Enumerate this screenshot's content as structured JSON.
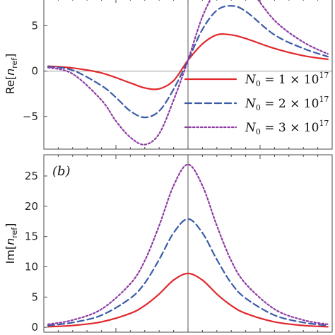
{
  "chart_data": [
    {
      "type": "line",
      "panel": "top",
      "tag": "",
      "ylabel": "Re[n_ref]",
      "ylabel_main": "Re[",
      "ylabel_n": "n",
      "ylabel_sub": "ref",
      "ylabel_close": "]",
      "xlim": [
        -10,
        10
      ],
      "ylim": [
        -8.6,
        8.0
      ],
      "yticks": [
        -5,
        0,
        5
      ],
      "ytick_labels": [
        "−5",
        "0",
        "5"
      ],
      "center_x": 0,
      "series": [
        {
          "name": "N0 = 1×10^17",
          "color": "#e0282c",
          "style": "solid",
          "x": [
            -9.7,
            -8,
            -6,
            -4,
            -3,
            -2,
            -1,
            0,
            1,
            2,
            3,
            4,
            6,
            8,
            9.7
          ],
          "y": [
            0.55,
            0.35,
            -0.2,
            -1.3,
            -1.85,
            -1.95,
            -1.05,
            1.2,
            3.0,
            4.0,
            4.0,
            3.6,
            2.5,
            1.7,
            1.3
          ]
        },
        {
          "name": "N0 = 2×10^17",
          "color": "#3a5ba8",
          "style": "dashed",
          "x": [
            -9.7,
            -8,
            -6,
            -5,
            -4,
            -3,
            -2,
            -1,
            0,
            1,
            2,
            3,
            4,
            6,
            8,
            9.7
          ],
          "y": [
            0.5,
            0.1,
            -1.6,
            -2.9,
            -4.4,
            -5.1,
            -4.4,
            -2.0,
            1.2,
            4.6,
            6.7,
            7.2,
            6.6,
            4.0,
            2.5,
            1.6
          ]
        },
        {
          "name": "N0 = 3×10^17",
          "color": "#8e3aa4",
          "style": "dotted",
          "x": [
            -9.7,
            -8,
            -6,
            -5,
            -4,
            -3,
            -2,
            -1,
            0,
            1,
            2,
            3,
            4,
            6,
            8,
            9.7
          ],
          "y": [
            0.4,
            -0.3,
            -3.2,
            -5.5,
            -7.3,
            -8.1,
            -6.9,
            -3.2,
            1.2,
            6.0,
            9.0,
            10.2,
            9.6,
            5.6,
            3.2,
            1.9
          ]
        }
      ],
      "legend": {
        "placement": "center-right",
        "entries": [
          {
            "lhs": "N",
            "sub": "0",
            "rhs": " = 1 × 10",
            "sup": "17"
          },
          {
            "lhs": "N",
            "sub": "0",
            "rhs": " = 2 × 10",
            "sup": "17"
          },
          {
            "lhs": "N",
            "sub": "0",
            "rhs": " = 3 × 10",
            "sup": "17"
          }
        ]
      }
    },
    {
      "type": "line",
      "panel": "bottom",
      "tag": "(b)",
      "ylabel": "Im[n_ref]",
      "ylabel_main": "Im[",
      "ylabel_n": "n",
      "ylabel_sub": "ref",
      "ylabel_close": "]",
      "xlim": [
        -10,
        10
      ],
      "ylim": [
        -0.8,
        28.5
      ],
      "yticks": [
        0,
        5,
        10,
        15,
        20,
        25
      ],
      "ytick_labels": [
        "0",
        "5",
        "10",
        "15",
        "20",
        "25"
      ],
      "center_x": 0,
      "series": [
        {
          "name": "N0 = 1×10^17",
          "color": "#e0282c",
          "style": "solid",
          "x": [
            -9.7,
            -8,
            -6,
            -4,
            -3,
            -2,
            -1,
            0,
            1,
            2,
            3,
            4,
            6,
            8,
            9.7
          ],
          "y": [
            0.1,
            0.3,
            0.9,
            2.3,
            3.6,
            5.5,
            7.8,
            8.9,
            7.8,
            5.5,
            3.6,
            2.3,
            0.9,
            0.3,
            0.1
          ]
        },
        {
          "name": "N0 = 2×10^17",
          "color": "#3a5ba8",
          "style": "dashed",
          "x": [
            -9.7,
            -8,
            -6,
            -4,
            -3,
            -2,
            -1,
            0,
            1,
            2,
            3,
            4,
            6,
            8,
            9.7
          ],
          "y": [
            0.3,
            0.8,
            2.0,
            4.8,
            7.3,
            11.2,
            15.6,
            17.9,
            15.6,
            11.2,
            7.3,
            4.8,
            2.0,
            0.8,
            0.3
          ]
        },
        {
          "name": "N0 = 3×10^17",
          "color": "#8e3aa4",
          "style": "dotted",
          "x": [
            -9.7,
            -8,
            -6,
            -4,
            -3,
            -2,
            -1,
            0,
            1,
            2,
            3,
            4,
            6,
            8,
            9.7
          ],
          "y": [
            0.5,
            1.2,
            3.0,
            7.2,
            11.0,
            16.8,
            23.4,
            26.9,
            23.4,
            16.8,
            11.0,
            7.2,
            3.0,
            1.2,
            0.5
          ]
        }
      ]
    }
  ]
}
